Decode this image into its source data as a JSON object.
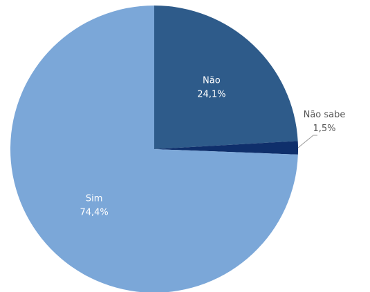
{
  "chart_data": {
    "type": "pie",
    "title": "",
    "start_angle_deg": 0,
    "direction": "clockwise",
    "slices": [
      {
        "name": "Não",
        "value": 24.1,
        "value_label": "24,1%",
        "color": "#2e5b8a",
        "label_position": "inside"
      },
      {
        "name": "Não sabe",
        "value": 1.5,
        "value_label": "1,5%",
        "color": "#0f2f6b",
        "label_position": "outside"
      },
      {
        "name": "Sim",
        "value": 74.4,
        "value_label": "74,4%",
        "color": "#7ba7d8",
        "label_position": "inside"
      }
    ],
    "legend": "none"
  }
}
